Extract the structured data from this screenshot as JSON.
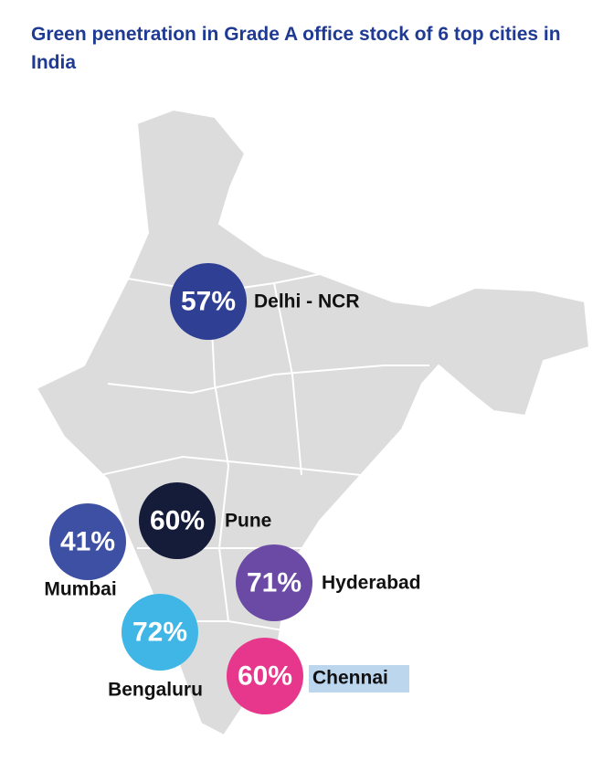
{
  "title": "Green penetration in Grade A office stock of 6 top cities in India",
  "cities": [
    {
      "name": "Delhi - NCR",
      "value": 57,
      "label": "57%",
      "color": "#2e3f94"
    },
    {
      "name": "Pune",
      "value": 60,
      "label": "60%",
      "color": "#141c3a"
    },
    {
      "name": "Mumbai",
      "value": 41,
      "label": "41%",
      "color": "#3d50a3"
    },
    {
      "name": "Hyderabad",
      "value": 71,
      "label": "71%",
      "color": "#6b4aa5"
    },
    {
      "name": "Bengaluru",
      "value": 72,
      "label": "72%",
      "color": "#3fb6e6"
    },
    {
      "name": "Chennai",
      "value": 60,
      "label": "60%",
      "color": "#e6378c"
    }
  ]
}
